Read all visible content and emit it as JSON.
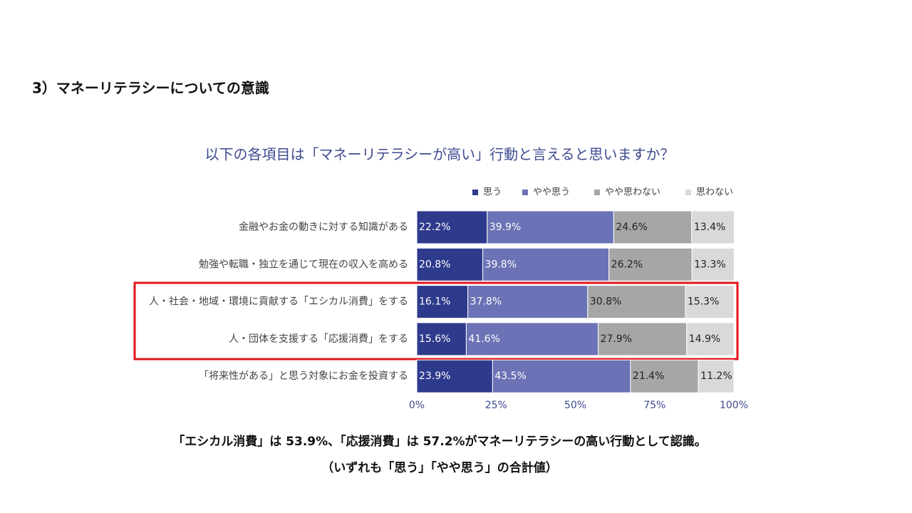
{
  "header": {
    "title": "3）マネーリテラシーについての意識"
  },
  "chart_data": {
    "type": "stacked-bar-horizontal",
    "title": "以下の各項目は「マネーリテラシーが高い」行動と言えると思いますか？",
    "categories": [
      "金融やお金の動きに対する知識がある",
      "勉強や転職・独立を通じて現在の収入を高める",
      "人・社会・地域・環境に貢献する「エシカル消費」をする",
      "人・団体を支援する「応援消費」をする",
      "「将来性がある」と思う対象にお金を投資する"
    ],
    "series": [
      {
        "name": "思う",
        "color": "#2e3a8c",
        "values": [
          22.2,
          20.8,
          16.1,
          15.6,
          23.9
        ],
        "value_labels": [
          "22.2%",
          "20.8%",
          "16.1%",
          "15.6%",
          "23.9%"
        ]
      },
      {
        "name": "やや思う",
        "color": "#6b72b5",
        "values": [
          39.9,
          39.8,
          37.8,
          41.6,
          43.5
        ],
        "value_labels": [
          "39.9%",
          "39.8%",
          "37.8%",
          "41.6%",
          "43.5%"
        ]
      },
      {
        "name": "やや思わない",
        "color": "#a6a6a6",
        "values": [
          24.6,
          26.2,
          30.8,
          27.9,
          21.4
        ],
        "value_labels": [
          "24.6%",
          "26.2%",
          "30.8%",
          "27.9%",
          "21.4%"
        ]
      },
      {
        "name": "思わない",
        "color": "#d9d9d9",
        "values": [
          13.4,
          13.3,
          15.3,
          14.9,
          11.2
        ],
        "value_labels": [
          "13.4%",
          "13.3%",
          "15.3%",
          "14.9%",
          "11.2%"
        ]
      }
    ],
    "xlim": [
      0,
      100
    ],
    "xticks": [
      {
        "value": 0,
        "label": "0%"
      },
      {
        "value": 25,
        "label": "25%"
      },
      {
        "value": 50,
        "label": "50%"
      },
      {
        "value": 75,
        "label": "75%"
      },
      {
        "value": 100,
        "label": "100%"
      }
    ],
    "legend": "top-right"
  },
  "notes": [
    "「エシカル消費」は 53.9%、「応援消費」は 57.2%がマネーリテラシーの高い行動として認識。",
    "（いずれも「思う」「やや思う」の合計値）"
  ]
}
